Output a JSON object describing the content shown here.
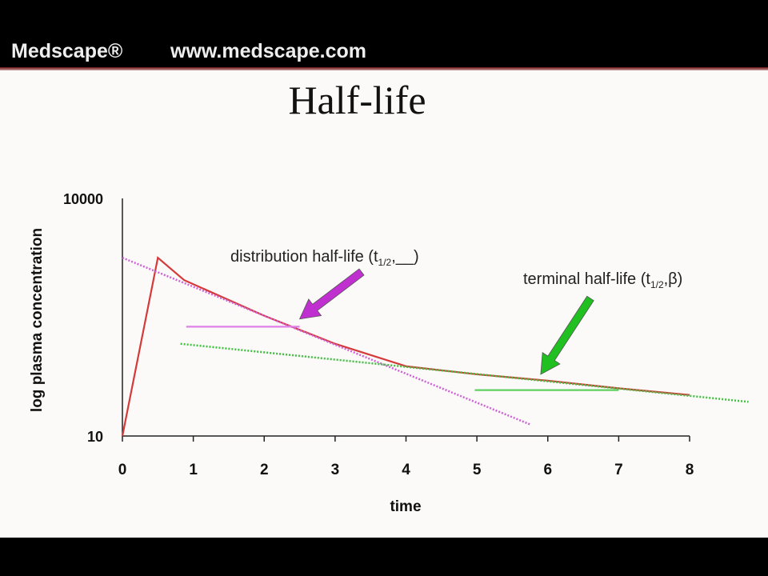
{
  "header": {
    "brand": "Medscape®",
    "url": "www.medscape.com"
  },
  "slide": {
    "title": "Half-life"
  },
  "chart_data": {
    "type": "line",
    "title": "Half-life",
    "xlabel": "time",
    "ylabel": "log plasma concentration",
    "xlim": [
      0,
      8
    ],
    "ylim": [
      10,
      10000
    ],
    "yscale": "log",
    "xticks": [
      "0",
      "1",
      "2",
      "3",
      "4",
      "5",
      "6",
      "7",
      "8"
    ],
    "yticks": [
      "10",
      "10000"
    ],
    "grid": false,
    "series": [
      {
        "color": "#d43a3a",
        "style": "solid",
        "x": [
          0,
          0.5,
          0.87,
          2,
          3,
          4,
          5,
          6,
          7,
          8
        ],
        "y": [
          10,
          1780,
          930,
          330,
          146,
          76,
          60,
          50,
          40,
          33
        ]
      },
      {
        "color": "#d060d8",
        "style": "dotted",
        "x": [
          0,
          5.75
        ],
        "y": [
          1780,
          14
        ]
      },
      {
        "color": "#40c040",
        "style": "dotted",
        "x": [
          0.82,
          8.83
        ],
        "y": [
          146,
          27
        ]
      },
      {
        "color": "#e080e8",
        "style": "solid",
        "x": [
          0.9,
          2.5
        ],
        "y": [
          240,
          240
        ]
      },
      {
        "color": "#60d060",
        "style": "solid",
        "x": [
          4.97,
          7.0
        ],
        "y": [
          38,
          38
        ]
      }
    ],
    "annotations": [
      {
        "text": "distribution half-life (t",
        "sub": "1/2",
        "suffix": ",__)",
        "arrow_color": "#c030d0",
        "arrow_to": [
          2.5,
          300
        ]
      },
      {
        "text": "terminal half-life (t",
        "sub": "1/2",
        "suffix": ",β)",
        "arrow_color": "#20c020",
        "arrow_to": [
          5.9,
          60
        ]
      }
    ]
  }
}
